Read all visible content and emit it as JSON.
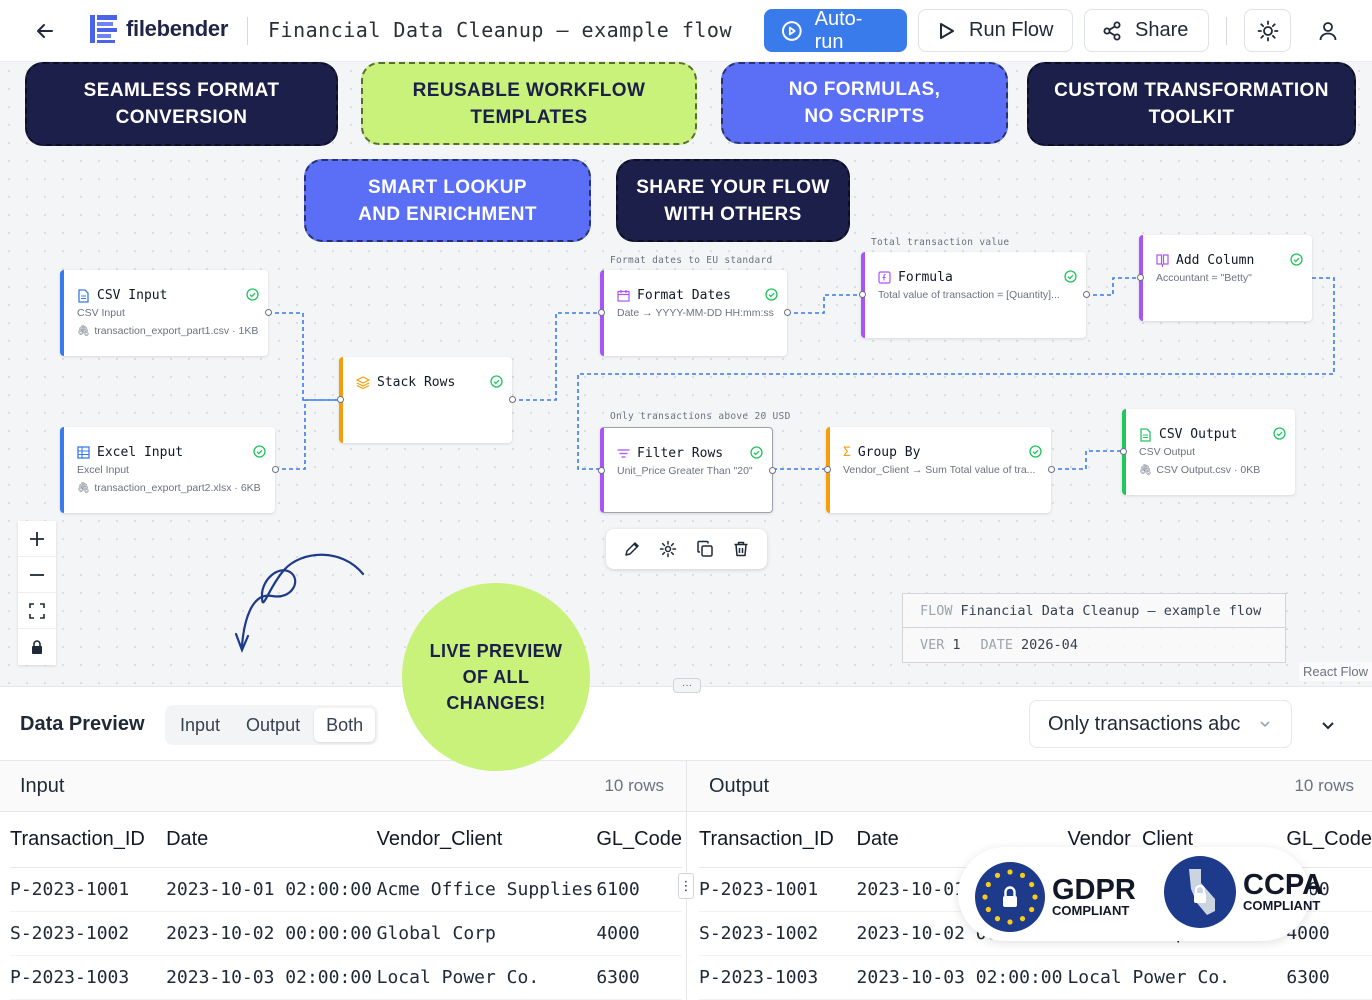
{
  "header": {
    "app_name": "filebender",
    "flow_title": "Financial Data Cleanup – example flow",
    "autorun_label": "Auto-run",
    "runflow_label": "Run Flow",
    "share_label": "Share",
    "accent": "#3a7bec"
  },
  "badges": [
    {
      "text": "SEAMLESS FORMAT\nCONVERSION",
      "style": "dark"
    },
    {
      "text": "REUSABLE WORKFLOW\nTEMPLATES",
      "style": "lime"
    },
    {
      "text": "NO FORMULAS,\nNO SCRIPTS",
      "style": "blue"
    },
    {
      "text": "CUSTOM TRANSFORMATION\nTOOLKIT",
      "style": "dark"
    },
    {
      "text": "SMART LOOKUP\nAND ENRICHMENT",
      "style": "blue"
    },
    {
      "text": "SHARE YOUR FLOW\nWITH OTHERS",
      "style": "dark"
    }
  ],
  "nodes": {
    "csv_input": {
      "title": "CSV Input",
      "sub": "CSV Input",
      "file": "transaction_export_part1.csv · 1KB"
    },
    "excel_input": {
      "title": "Excel Input",
      "sub": "Excel Input",
      "file": "transaction_export_part2.xlsx · 6KB"
    },
    "stack_rows": {
      "title": "Stack Rows"
    },
    "format_dates": {
      "label": "Format dates to EU standard",
      "title": "Format Dates",
      "sub": "Date → YYYY-MM-DD HH:mm:ss"
    },
    "formula": {
      "label": "Total transaction value",
      "title": "Formula",
      "sub": "Total value of transaction = [Quantity]..."
    },
    "add_column": {
      "title": "Add Column",
      "sub": "Accountant = \"Betty\""
    },
    "filter_rows": {
      "label": "Only transactions above 20 USD",
      "title": "Filter Rows",
      "sub": "Unit_Price Greater Than \"20\""
    },
    "group_by": {
      "title": "Group By",
      "sub": "Vendor_Client → Sum Total value of tra..."
    },
    "csv_output": {
      "title": "CSV Output",
      "sub": "CSV Output",
      "file": "CSV Output.csv · 0KB"
    }
  },
  "flow_info": {
    "flow_key": "FLOW",
    "flow_value": "Financial Data Cleanup – example flow",
    "ver_key": "VER",
    "ver_value": "1",
    "date_key": "DATE",
    "date_value": "2026-04"
  },
  "live_preview": "LIVE PREVIEW\nOF ALL\nCHANGES!",
  "attribution": "React Flow",
  "resize_handle": "···",
  "preview": {
    "title": "Data Preview",
    "tabs": [
      "Input",
      "Output",
      "Both"
    ],
    "active_tab": "Both",
    "selected_node": "Only transactions abc",
    "input_panel": {
      "name": "Input",
      "count": "10 rows"
    },
    "output_panel": {
      "name": "Output",
      "count": "10 rows"
    },
    "columns": [
      "Transaction_ID",
      "Date",
      "Vendor_Client",
      "GL_Code"
    ],
    "input_rows": [
      [
        "P-2023-1001",
        "2023-10-01 02:00:00",
        "Acme Office Supplies",
        "6100"
      ],
      [
        "S-2023-1002",
        "2023-10-02 00:00:00",
        "Global Corp",
        "4000"
      ],
      [
        "P-2023-1003",
        "2023-10-03 02:00:00",
        "Local Power Co.",
        "6300"
      ]
    ],
    "output_rows": [
      [
        "P-2023-1001",
        "2023-10-01",
        "",
        "6100"
      ],
      [
        "S-2023-1002",
        "2023-10-02 00:00:00",
        "Global Corp",
        "4000"
      ],
      [
        "P-2023-1003",
        "2023-10-03 02:00:00",
        "Local Power Co.",
        "6300"
      ]
    ],
    "row_menu": "⋮"
  },
  "compliance": {
    "gdpr_big": "GDPR",
    "gdpr_small": "COMPLIANT",
    "ccpa_big": "CCPA",
    "ccpa_small": "COMPLIANT"
  }
}
